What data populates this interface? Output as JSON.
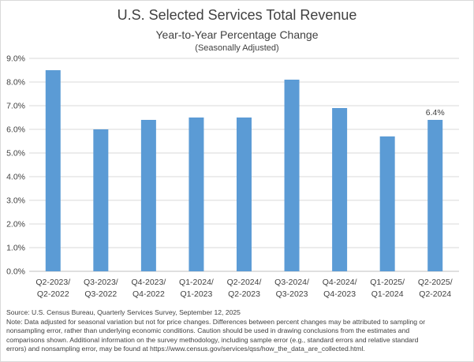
{
  "title": "U.S. Selected Services Total Revenue",
  "subtitle": "Year-to-Year Percentage Change",
  "subtitle2": "(Seasonally Adjusted)",
  "chart_data": {
    "type": "bar",
    "title": "U.S. Selected Services Total Revenue",
    "subtitle": "Year-to-Year Percentage Change (Seasonally Adjusted)",
    "categories": [
      [
        "Q2-2023/",
        "Q2-2022"
      ],
      [
        "Q3-2023/",
        "Q3-2022"
      ],
      [
        "Q4-2023/",
        "Q4-2022"
      ],
      [
        "Q1-2024/",
        "Q1-2023"
      ],
      [
        "Q2-2024/",
        "Q2-2023"
      ],
      [
        "Q3-2024/",
        "Q3-2023"
      ],
      [
        "Q4-2024/",
        "Q4-2023"
      ],
      [
        "Q1-2025/",
        "Q1-2024"
      ],
      [
        "Q2-2025/",
        "Q2-2024"
      ]
    ],
    "values": [
      8.5,
      6.0,
      6.4,
      6.5,
      6.5,
      8.1,
      6.9,
      5.7,
      6.4
    ],
    "ylim": [
      0,
      9
    ],
    "yticks": [
      "0.0%",
      "1.0%",
      "2.0%",
      "3.0%",
      "4.0%",
      "5.0%",
      "6.0%",
      "7.0%",
      "8.0%",
      "9.0%"
    ],
    "data_labels": [
      null,
      null,
      null,
      null,
      null,
      null,
      null,
      null,
      "6.4%"
    ],
    "bar_color": "#5b9bd5",
    "grid": true,
    "xlabel": "",
    "ylabel": ""
  },
  "footnote": {
    "source": "Source:  U.S. Census Bureau, Quarterly Services Survey, September 12, 2025",
    "lines": [
      "Note: Data adjusted for seasonal variation but not for price changes. Differences between percent changes may be attributed  to sampling or",
      "nonsampling  error, rather than underlying economic conditions.  Caution should be used in drawing conclusions  from the estimates and",
      "comparisons shown.  Additional information on the survey methodology, including sample error (e.g., standard errors and relative standard",
      "errors) and nonsampling  error, may be found at https://www.census.gov/services/qss/how_the_data_are_collected.html."
    ]
  }
}
